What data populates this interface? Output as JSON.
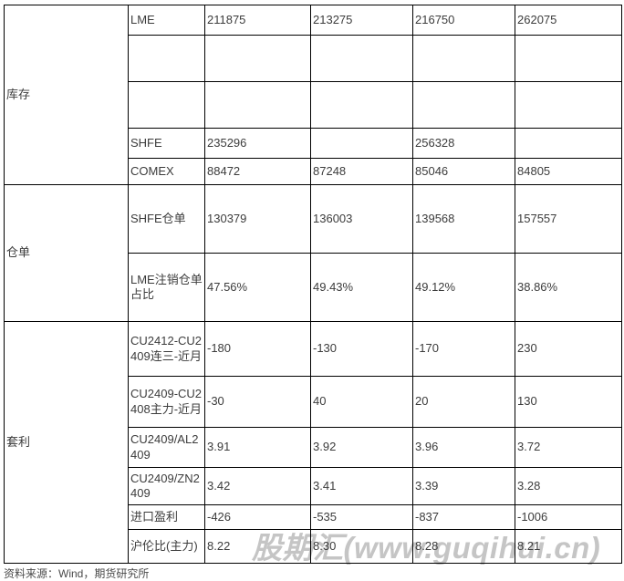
{
  "table": {
    "sections": [
      {
        "group": "库存",
        "rows": [
          {
            "label": "LME",
            "values": [
              "211875",
              "213275",
              "216750",
              "262075"
            ]
          },
          {
            "label": "",
            "values": [
              "",
              "",
              "",
              ""
            ]
          },
          {
            "label": "",
            "values": [
              "",
              "",
              "",
              ""
            ]
          },
          {
            "label": "SHFE",
            "values": [
              "235296",
              "",
              "256328",
              ""
            ]
          },
          {
            "label": "COMEX",
            "values": [
              "88472",
              "87248",
              "85046",
              "84805"
            ]
          }
        ]
      },
      {
        "group": "仓单",
        "rows": [
          {
            "label": "SHFE仓单",
            "values": [
              "130379",
              "136003",
              "139568",
              "157557"
            ]
          },
          {
            "label": "LME注销仓单占比",
            "values": [
              "47.56%",
              "49.43%",
              "49.12%",
              "38.86%"
            ]
          }
        ]
      },
      {
        "group": "套利",
        "rows": [
          {
            "label": "CU2412-CU2409连三-近月",
            "values": [
              "-180",
              "-130",
              "-170",
              "230"
            ]
          },
          {
            "label": "CU2409-CU2408主力-近月",
            "values": [
              "-30",
              "40",
              "20",
              "130"
            ]
          },
          {
            "label": "CU2409/AL2409",
            "values": [
              "3.91",
              "3.92",
              "3.96",
              "3.72"
            ]
          },
          {
            "label": "CU2409/ZN2409",
            "values": [
              "3.42",
              "3.41",
              "3.39",
              "3.28"
            ]
          },
          {
            "label": "进口盈利",
            "values": [
              "-426",
              "-535",
              "-837",
              "-1006"
            ]
          },
          {
            "label": "沪伦比(主力)",
            "values": [
              "8.22",
              "8.30",
              "8.28",
              "8.21"
            ]
          }
        ]
      }
    ]
  },
  "watermark": "股期汇(www.guqihui.cn)",
  "footer_note": "资料来源：Wind，期货研究所",
  "colors": {
    "border": "#000000",
    "text": "#3c3c3c",
    "watermark": "#c5c5c5",
    "background": "#ffffff"
  }
}
